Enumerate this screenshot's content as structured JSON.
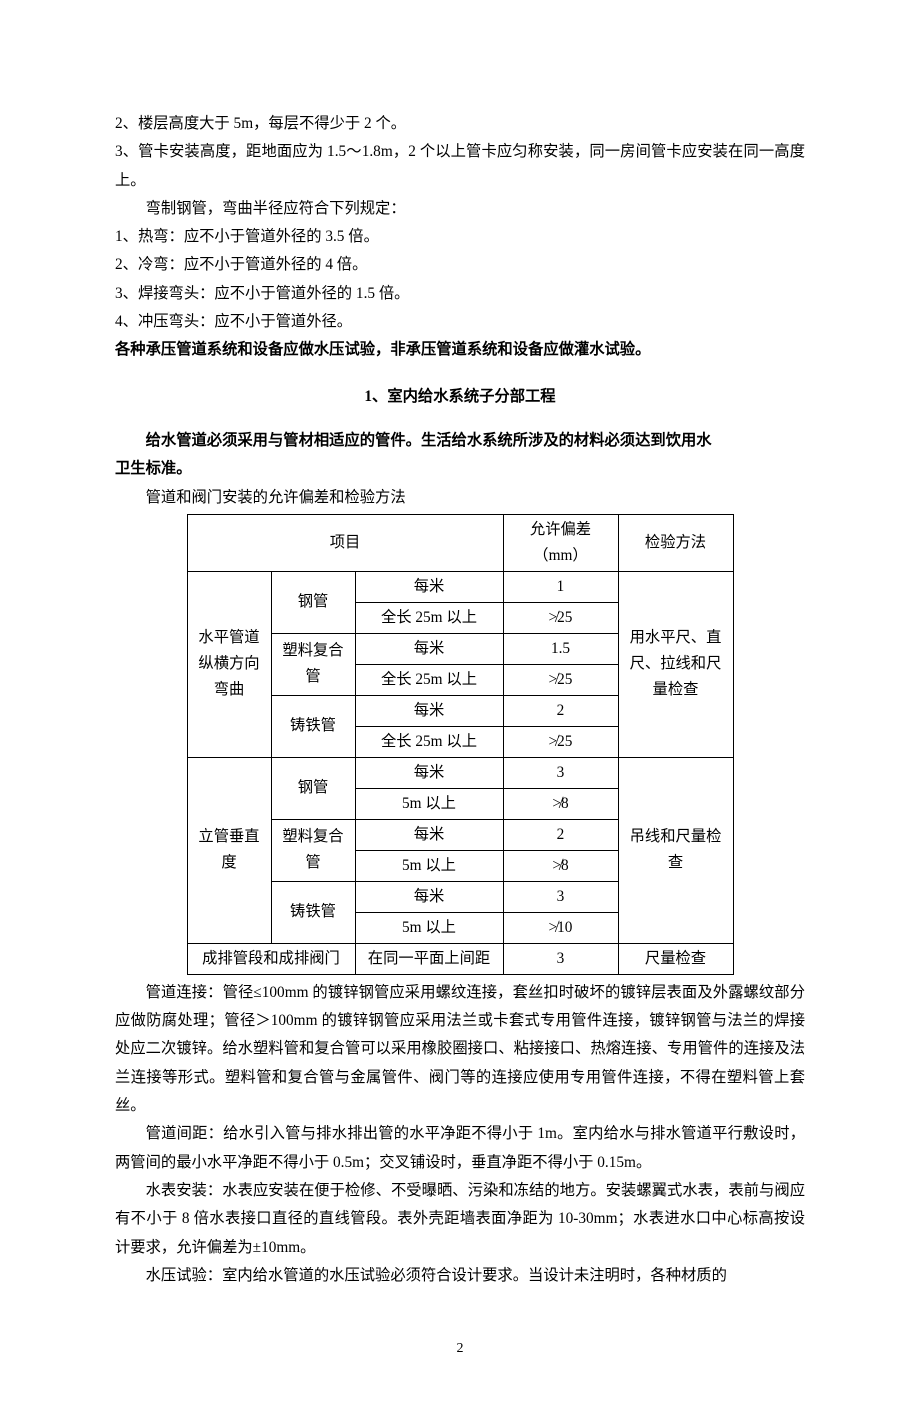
{
  "intro": {
    "line1": "2、楼层高度大于 5m，每层不得少于 2 个。",
    "line2": "3、管卡安装高度，距地面应为 1.5～1.8m，2 个以上管卡应匀称安装，同一房间管卡应安装在同一高度上。",
    "bend_intro": "弯制钢管，弯曲半径应符合下列规定：",
    "bend1": "1、热弯：应不小于管道外径的 3.5 倍。",
    "bend2": "2、冷弯：应不小于管道外径的 4 倍。",
    "bend3": "3、焊接弯头：应不小于管道外径的 1.5 倍。",
    "bend4": "4、冲压弯头：应不小于管道外径。",
    "bold_test": "各种承压管道系统和设备应做水压试验，非承压管道系统和设备应做灌水试验。"
  },
  "section_title": "1、室内给水系统子分部工程",
  "bold_para_1a": "给水管道必须采用与管材相适应的管件。生活给水系统所涉及的材料必须达到饮用水",
  "bold_para_1b": "卫生标准。",
  "table_caption": "管道和阀门安装的允许偏差和检验方法",
  "table": {
    "header": {
      "col1": "项目",
      "col2": "允许偏差（mm）",
      "col3": "检验方法"
    },
    "group1": {
      "label": "水平管道纵横方向弯曲",
      "method": "用水平尺、直尺、拉线和尺量检查",
      "rows": [
        {
          "mat": "钢管",
          "cond1": "每米",
          "tol1": "1",
          "cond2": "全长 25m 以上",
          "tol2": "≯25"
        },
        {
          "mat": "塑料复合管",
          "cond1": "每米",
          "tol1": "1.5",
          "cond2": "全长 25m 以上",
          "tol2": "≯25"
        },
        {
          "mat": "铸铁管",
          "cond1": "每米",
          "tol1": "2",
          "cond2": "全长 25m 以上",
          "tol2": "≯25"
        }
      ]
    },
    "group2": {
      "label": "立管垂直度",
      "method": "吊线和尺量检查",
      "rows": [
        {
          "mat": "钢管",
          "cond1": "每米",
          "tol1": "3",
          "cond2": "5m 以上",
          "tol2": "≯8"
        },
        {
          "mat": "塑料复合管",
          "cond1": "每米",
          "tol1": "2",
          "cond2": "5m 以上",
          "tol2": "≯8"
        },
        {
          "mat": "铸铁管",
          "cond1": "每米",
          "tol1": "3",
          "cond2": "5m 以上",
          "tol2": "≯10"
        }
      ]
    },
    "row_last": {
      "label": "成排管段和成排阀门",
      "cond": "在同一平面上间距",
      "tol": "3",
      "method": "尺量检查"
    }
  },
  "para_connect": "管道连接：管径≤100mm 的镀锌钢管应采用螺纹连接，套丝扣时破坏的镀锌层表面及外露螺纹部分应做防腐处理；管径＞100mm 的镀锌钢管应采用法兰或卡套式专用管件连接，镀锌钢管与法兰的焊接处应二次镀锌。给水塑料管和复合管可以采用橡胶圈接口、粘接接口、热熔连接、专用管件的连接及法兰连接等形式。塑料管和复合管与金属管件、阀门等的连接应使用专用管件连接，不得在塑料管上套丝。",
  "para_spacing": "管道间距：给水引入管与排水排出管的水平净距不得小于 1m。室内给水与排水管道平行敷设时，两管间的最小水平净距不得小于 0.5m；交叉铺设时，垂直净距不得小于 0.15m。",
  "para_meter": "水表安装：水表应安装在便于检修、不受曝晒、污染和冻结的地方。安装螺翼式水表，表前与阀应有不小于 8 倍水表接口直径的直线管段。表外壳距墙表面净距为 10-30mm；水表进水口中心标高按设计要求，允许偏差为±10mm。",
  "para_hydro": "水压试验：室内给水管道的水压试验必须符合设计要求。当设计未注明时，各种材质的",
  "page_number": "2"
}
